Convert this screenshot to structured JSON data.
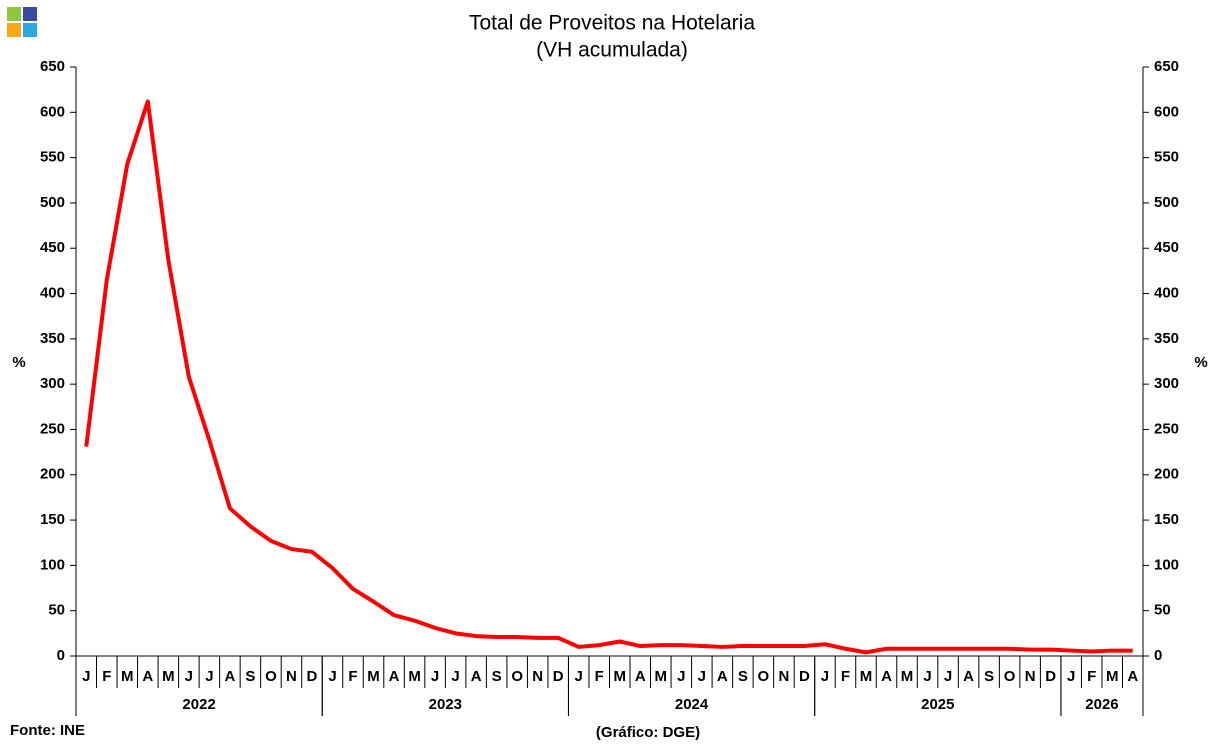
{
  "chart_data": {
    "type": "line",
    "title": "Total de Proveitos na Hotelaria",
    "subtitle": "(VH acumulada)",
    "y_label": "%",
    "y2_label": "%",
    "source": "Fonte: INE",
    "credit": "(Gráfico: DGE)",
    "color": "#ff0000",
    "groups": [
      {
        "label": "2022",
        "categories": [
          "J",
          "F",
          "M",
          "A",
          "M",
          "J",
          "J",
          "A",
          "S",
          "O",
          "N",
          "D"
        ]
      },
      {
        "label": "2023",
        "categories": [
          "J",
          "F",
          "M",
          "A",
          "M",
          "J",
          "J",
          "A",
          "S",
          "O",
          "N",
          "D"
        ]
      },
      {
        "label": "2024",
        "categories": [
          "J",
          "F",
          "M",
          "A",
          "M",
          "J",
          "J",
          "A",
          "S",
          "O",
          "N",
          "D"
        ]
      },
      {
        "label": "2025",
        "categories": [
          "J",
          "F",
          "M",
          "A",
          "M",
          "J",
          "J",
          "A",
          "S",
          "O",
          "N",
          "D"
        ]
      },
      {
        "label": "2026",
        "categories": [
          "J",
          "F",
          "M",
          "A"
        ]
      }
    ],
    "values": [
      231,
      415,
      543,
      612,
      437,
      308,
      238,
      163,
      143,
      127,
      118,
      115,
      97,
      74,
      60,
      45,
      39,
      31,
      25,
      22,
      21,
      21,
      20,
      20,
      10,
      12,
      16,
      11,
      12,
      12,
      11,
      10,
      11,
      11,
      11,
      11,
      13,
      8,
      4,
      8,
      8,
      8,
      8,
      8,
      8,
      8,
      7,
      7,
      6,
      5,
      6,
      6
    ],
    "ylim": [
      0,
      650
    ],
    "yticks": [
      0,
      50,
      100,
      150,
      200,
      250,
      300,
      350,
      400,
      450,
      500,
      550,
      600,
      650
    ],
    "y2lim": [
      0,
      650
    ],
    "y2ticks": [
      0,
      50,
      100,
      150,
      200,
      250,
      300,
      350,
      400,
      450,
      500,
      550,
      600,
      650
    ]
  }
}
